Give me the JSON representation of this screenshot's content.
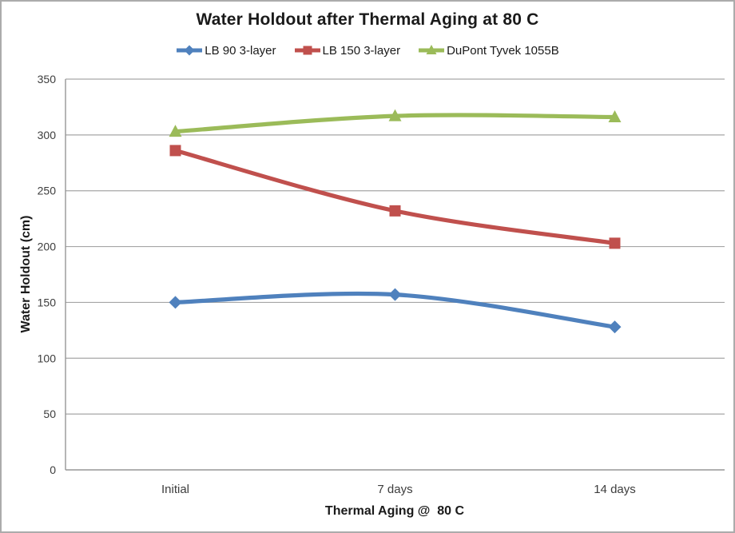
{
  "chart_data": {
    "type": "line",
    "title": "Water Holdout after Thermal Aging at 80 C",
    "xlabel": "Thermal Aging @  80 C",
    "ylabel": "Water Holdout (cm)",
    "categories": [
      "Initial",
      "7 days",
      "14 days"
    ],
    "series": [
      {
        "name": "LB 90 3-layer",
        "marker": "diamond",
        "color": "#4F81BD",
        "values": [
          150,
          157,
          128
        ]
      },
      {
        "name": "LB 150 3-layer",
        "marker": "square",
        "color": "#C0504D",
        "values": [
          286,
          232,
          203
        ]
      },
      {
        "name": "DuPont Tyvek 1055B",
        "marker": "triangle",
        "color": "#9BBB59",
        "values": [
          303,
          317,
          316
        ]
      }
    ],
    "ylim": [
      0,
      350
    ],
    "ytick_step": 50,
    "grid": true,
    "legend_position": "top",
    "line_smooth": true
  },
  "colors": {
    "background": "#FFFFFF",
    "border": "#ABABAB",
    "gridline": "#A6A6A6",
    "axis": "#969696",
    "title_text": "#1A1A1A",
    "tick_text": "#3D3D3D"
  }
}
